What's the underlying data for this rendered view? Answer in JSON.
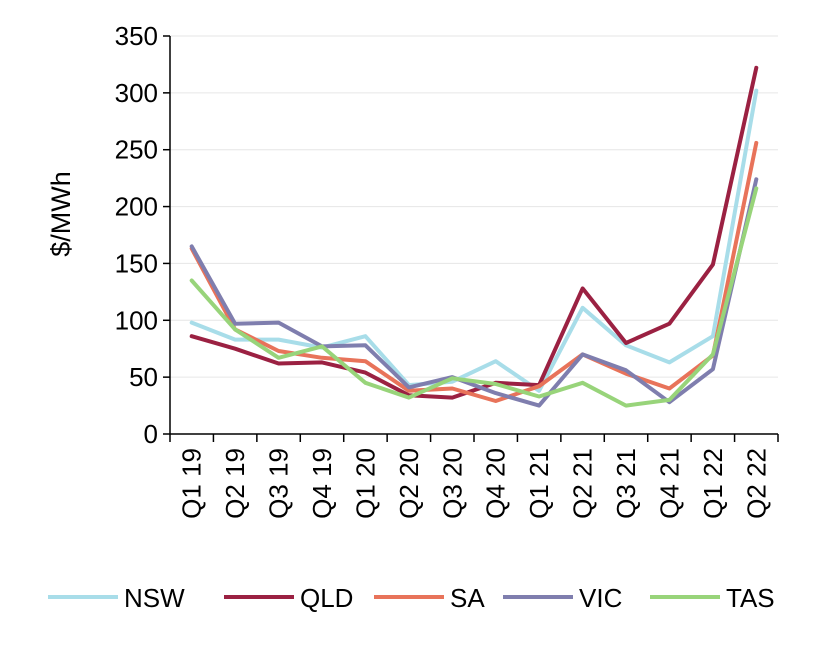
{
  "chart_data": {
    "type": "line",
    "title": "",
    "xlabel": "",
    "ylabel": "$/MWh",
    "ylim": [
      0,
      350
    ],
    "yticks": [
      0,
      50,
      100,
      150,
      200,
      250,
      300,
      350
    ],
    "ytick_labels": [
      "0",
      "50",
      "100",
      "150",
      "200",
      "250",
      "300",
      "350"
    ],
    "grid": "horizontal",
    "legend_position": "bottom",
    "categories": [
      "Q1 19",
      "Q2 19",
      "Q3 19",
      "Q4 19",
      "Q1 20",
      "Q2 20",
      "Q3 20",
      "Q4 20",
      "Q1 21",
      "Q2 21",
      "Q3 21",
      "Q4 21",
      "Q1 22",
      "Q2 22"
    ],
    "series": [
      {
        "name": "NSW",
        "color": "#a8dde9",
        "values": [
          98,
          83,
          83,
          76,
          86,
          43,
          46,
          64,
          38,
          111,
          78,
          63,
          86,
          302
        ]
      },
      {
        "name": "QLD",
        "color": "#9b2142",
        "values": [
          86,
          75,
          62,
          63,
          54,
          34,
          32,
          45,
          43,
          128,
          80,
          97,
          149,
          322
        ]
      },
      {
        "name": "SA",
        "color": "#e8735a",
        "values": [
          163,
          92,
          73,
          67,
          64,
          38,
          40,
          29,
          42,
          70,
          53,
          40,
          69,
          256
        ]
      },
      {
        "name": "VIC",
        "color": "#7f7eae",
        "values": [
          165,
          97,
          98,
          77,
          78,
          41,
          50,
          36,
          25,
          70,
          56,
          28,
          57,
          224
        ]
      },
      {
        "name": "TAS",
        "color": "#98d47a",
        "values": [
          135,
          92,
          67,
          77,
          45,
          32,
          49,
          44,
          33,
          45,
          25,
          30,
          70,
          216
        ]
      }
    ]
  }
}
